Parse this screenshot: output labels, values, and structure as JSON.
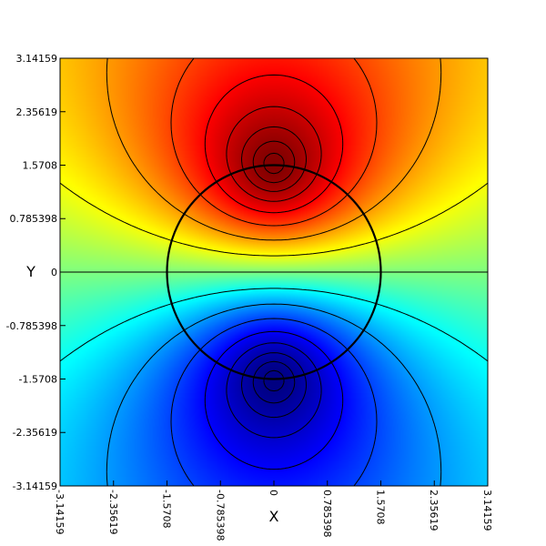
{
  "chart_data": {
    "type": "heatmap",
    "title": "",
    "xlabel": "X",
    "ylabel": "Y",
    "xlim": [
      -3.14159,
      3.14159
    ],
    "ylim": [
      -3.14159,
      3.14159
    ],
    "x_ticks": [
      -3.14159,
      -2.35619,
      -1.5708,
      -0.785398,
      0,
      0.785398,
      1.5708,
      2.35619,
      3.14159
    ],
    "x_tick_labels": [
      "-3.14159",
      "-2.35619",
      "-1.5708",
      "-0.785398",
      "0",
      "0.785398",
      "1.5708",
      "2.35619",
      "3.14159"
    ],
    "y_ticks": [
      3.14159,
      2.35619,
      1.5708,
      0.785398,
      0,
      -0.785398,
      -1.5708,
      -2.35619,
      -3.14159
    ],
    "y_tick_labels": [
      "3.14159",
      "2.35619",
      "1.5708",
      "0.785398",
      "0",
      "-0.785398",
      "-1.5708",
      "-2.35619",
      "-3.14159"
    ],
    "colormap": "jet",
    "field": {
      "description": "harmonic potential with positive pole near (0, 1.5708) and negative pole near (0, -1.5708)",
      "max_location": [
        0,
        1.5708
      ],
      "min_location": [
        0,
        -1.5708
      ]
    },
    "circle": {
      "center": [
        0,
        0
      ],
      "radius": 1.5708
    },
    "contour_lines": true,
    "grid": false,
    "legend": "none"
  }
}
